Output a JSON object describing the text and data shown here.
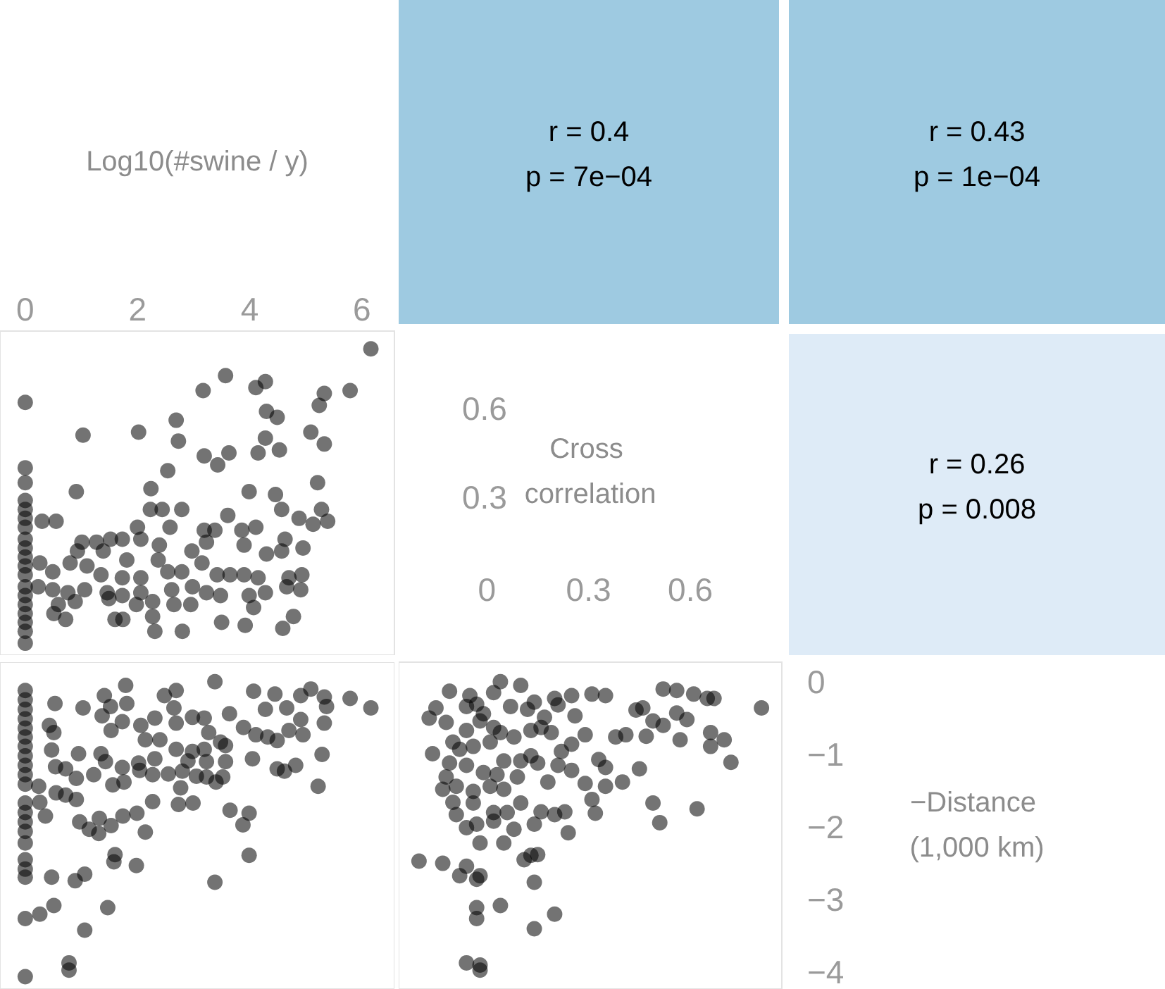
{
  "chart_data": [
    {
      "type": "other",
      "title": "Log10(#swine / y)"
    },
    {
      "type": "other",
      "color": "#9ecae1",
      "annotations": [
        "r = 0.4",
        "p = 7e−04"
      ]
    },
    {
      "type": "other",
      "color": "#9ecae1",
      "annotations": [
        "r = 0.43",
        "p = 1e−04"
      ]
    },
    {
      "type": "scatter",
      "marker": "circle",
      "xlim": [
        -0.45,
        6.58
      ],
      "xticks": [
        0,
        2,
        4,
        6
      ],
      "ylim": [
        -0.23,
        0.86
      ],
      "yticks": [
        0.3,
        0.6
      ],
      "series": [
        {
          "color": "#000000",
          "x": [
            0,
            0,
            0,
            0,
            0,
            0,
            0,
            0,
            0,
            0,
            0,
            0,
            0,
            0,
            0,
            0,
            0,
            0,
            0,
            6.16,
            3.57,
            3.17,
            4.11,
            4.28,
            5.33,
            5.79,
            5.24,
            4.3,
            4.49,
            2.69,
            1.03,
            2.02,
            2.73,
            4.28,
            5.09,
            5.33,
            3.19,
            3.63,
            4.15,
            4.53,
            3.43,
            2.54,
            2.24,
            5.21,
            0.91,
            3.99,
            4.46,
            2.23,
            2.44,
            2.79,
            3.61,
            4.57,
            5.28,
            4.88,
            5.13,
            5.39,
            0.3,
            0.55,
            2.0,
            2.58,
            3.19,
            3.38,
            3.86,
            4.11,
            1.01,
            1.27,
            1.52,
            1.73,
            2.06,
            2.39,
            2.97,
            3.23,
            3.9,
            4.63,
            4.95,
            0.93,
            1.39,
            1.81,
            2.37,
            3.15,
            4.3,
            4.57,
            0.26,
            0.49,
            0.8,
            1.1,
            1.35,
            1.73,
            2.06,
            2.54,
            2.79,
            3.42,
            3.65,
            3.9,
            4.15,
            4.7,
            4.93,
            0.23,
            0.49,
            0.76,
            1.06,
            1.46,
            1.73,
            2.06,
            2.61,
            2.98,
            3.23,
            3.48,
            3.99,
            4.28,
            4.66,
            4.91,
            0.59,
            0.89,
            1.49,
            1.98,
            2.27,
            2.65,
            2.95,
            4.07,
            0.51,
            0.72,
            1.6,
            1.74,
            2.27,
            4.78,
            2.31,
            2.8,
            3.5,
            3.92,
            4.59
          ],
          "values": [
            0.62,
            0.4,
            0.35,
            0.29,
            0.26,
            0.23,
            0.2,
            0.16,
            0.13,
            0.1,
            0.07,
            0.04,
            0.0,
            -0.03,
            -0.06,
            -0.09,
            -0.12,
            -0.15,
            -0.19,
            0.8,
            0.71,
            0.66,
            0.67,
            0.69,
            0.65,
            0.66,
            0.61,
            0.59,
            0.57,
            0.56,
            0.51,
            0.52,
            0.49,
            0.5,
            0.52,
            0.48,
            0.44,
            0.45,
            0.45,
            0.46,
            0.41,
            0.39,
            0.33,
            0.35,
            0.32,
            0.32,
            0.31,
            0.26,
            0.26,
            0.26,
            0.24,
            0.26,
            0.26,
            0.23,
            0.21,
            0.22,
            0.22,
            0.22,
            0.2,
            0.2,
            0.19,
            0.19,
            0.19,
            0.2,
            0.15,
            0.15,
            0.16,
            0.16,
            0.16,
            0.14,
            0.12,
            0.15,
            0.14,
            0.16,
            0.13,
            0.12,
            0.12,
            0.09,
            0.09,
            0.08,
            0.11,
            0.12,
            0.08,
            0.05,
            0.08,
            0.07,
            0.04,
            0.03,
            0.03,
            0.05,
            0.05,
            0.04,
            0.04,
            0.04,
            0.03,
            0.03,
            0.04,
            0.0,
            -0.01,
            -0.02,
            -0.01,
            -0.02,
            -0.03,
            -0.02,
            -0.01,
            0.0,
            -0.02,
            -0.03,
            -0.03,
            -0.02,
            0.0,
            -0.01,
            -0.06,
            -0.05,
            -0.04,
            -0.06,
            -0.05,
            -0.06,
            -0.06,
            -0.07,
            -0.09,
            -0.11,
            -0.11,
            -0.11,
            -0.1,
            -0.1,
            -0.15,
            -0.15,
            -0.12,
            -0.13,
            -0.14
          ]
        }
      ]
    },
    {
      "type": "other",
      "title": "Cross correlation"
    },
    {
      "type": "other",
      "color": "#deebf7",
      "annotations": [
        "r = 0.26",
        "p = 0.008"
      ]
    },
    {
      "type": "scatter",
      "marker": "circle",
      "tick_labels": false,
      "xlim": [
        -0.45,
        6.58
      ],
      "xticks": [
        0,
        2,
        4,
        6
      ],
      "ylim": [
        -4.23,
        0.27
      ],
      "yticks": [
        0,
        -1,
        -2,
        -3,
        -4
      ],
      "series": [
        {
          "color": "#000000",
          "x": [
            0,
            0,
            0,
            0,
            0,
            0,
            0,
            0,
            0,
            0,
            0,
            0,
            0,
            0,
            0,
            0,
            0,
            0,
            0,
            0,
            0,
            0.53,
            1.03,
            1.41,
            1.79,
            1.81,
            1.52,
            1.37,
            2.48,
            2.69,
            3.38,
            4.07,
            4.45,
            4.91,
            5.09,
            5.33,
            5.79,
            6.16,
            4.28,
            4.66,
            5.37,
            5.33,
            4.91,
            2.98,
            3.19,
            3.64,
            2.65,
            2.69,
            2.31,
            2.06,
            1.73,
            1.53,
            0.43,
            0.51,
            3.89,
            4.11,
            4.32,
            4.7,
            4.95,
            4.49,
            2.14,
            2.4,
            3.27,
            3.48,
            3.57,
            2.69,
            2.98,
            3.19,
            0.47,
            0.95,
            1.35,
            2.31,
            2.9,
            3.23,
            3.57,
            4.05,
            5.29,
            1.43,
            0.54,
            0.72,
            2.02,
            1.73,
            4.49,
            4.82,
            4.62,
            0.91,
            1.22,
            1.56,
            1.76,
            2.04,
            2.27,
            2.55,
            2.8,
            3.05,
            3.23,
            3.4,
            3.52,
            2.77,
            5.22,
            0.24,
            0.55,
            0.72,
            0.26,
            0.91,
            2.27,
            2.73,
            2.99,
            3.65,
            3.99,
            3.88,
            0.36,
            0.97,
            1.14,
            1.31,
            1.32,
            1.53,
            1.74,
            1.99,
            2.14,
            3.99,
            1.6,
            1.58,
            1.98,
            0.47,
            0.89,
            1.06,
            3.38,
            0.51,
            0.26,
            1.47,
            1.06,
            0.78,
            0.78
          ],
          "values": [
            -0.12,
            -0.25,
            -0.38,
            -0.51,
            -0.64,
            -0.76,
            -0.89,
            -1.02,
            -1.15,
            -1.28,
            -1.41,
            -1.67,
            -1.8,
            -1.93,
            -2.06,
            -2.22,
            -2.45,
            -2.58,
            -2.69,
            -3.26,
            -4.06,
            -0.3,
            -0.36,
            -0.19,
            -0.05,
            -0.3,
            -0.34,
            -0.47,
            -0.19,
            -0.12,
            0.0,
            -0.13,
            -0.17,
            -0.19,
            -0.1,
            -0.21,
            -0.23,
            -0.36,
            -0.38,
            -0.36,
            -0.34,
            -0.57,
            -0.52,
            -0.49,
            -0.5,
            -0.44,
            -0.36,
            -0.57,
            -0.5,
            -0.6,
            -0.55,
            -0.67,
            -0.6,
            -0.7,
            -0.63,
            -0.73,
            -0.76,
            -0.67,
            -0.73,
            -0.81,
            -0.8,
            -0.8,
            -0.7,
            -0.83,
            -0.88,
            -0.93,
            -0.96,
            -0.93,
            -0.94,
            -0.99,
            -0.99,
            -1.06,
            -1.09,
            -1.1,
            -1.1,
            -1.06,
            -1.0,
            -1.1,
            -1.17,
            -1.2,
            -1.12,
            -1.18,
            -1.2,
            -1.15,
            -1.23,
            -1.33,
            -1.28,
            -1.42,
            -1.38,
            -1.22,
            -1.28,
            -1.27,
            -1.23,
            -1.3,
            -1.31,
            -1.38,
            -1.31,
            -1.46,
            -1.44,
            -1.44,
            -1.53,
            -1.56,
            -1.66,
            -1.62,
            -1.65,
            -1.69,
            -1.67,
            -1.77,
            -1.81,
            -1.97,
            -1.85,
            -1.93,
            -2.03,
            -2.09,
            -1.88,
            -1.98,
            -1.85,
            -1.81,
            -2.07,
            -2.39,
            -2.38,
            -2.48,
            -2.53,
            -2.69,
            -2.74,
            -2.65,
            -2.76,
            -3.08,
            -3.2,
            -3.11,
            -3.42,
            -3.87,
            -3.97
          ]
        }
      ]
    },
    {
      "type": "scatter",
      "marker": "circle",
      "xlim": [
        -0.26,
        0.87
      ],
      "xticks": [
        0,
        0.3,
        0.6
      ],
      "ylim": [
        -4.23,
        0.27
      ],
      "yticks": [
        {
          "value": 0,
          "label": "0"
        },
        {
          "value": -1,
          "label": "−1"
        },
        {
          "value": -2,
          "label": "−2"
        },
        {
          "value": -3,
          "label": "−3"
        },
        {
          "value": -4,
          "label": "−4"
        }
      ],
      "series": [
        {
          "color": "#000000",
          "x": [
            0.81,
            0.52,
            0.56,
            0.61,
            0.65,
            0.67,
            0.31,
            0.35,
            0.44,
            0.46,
            0.49,
            0.52,
            0.56,
            0.59,
            0.66,
            0.7,
            0.66,
            0.57,
            0.72,
            0.47,
            0.41,
            0.38,
            0.45,
            0.33,
            0.35,
            0.35,
            0.4,
            0.29,
            0.31,
            0.32,
            0.23,
            0.24,
            0.49,
            0.51,
            0.62,
            0.2,
            0.16,
            0.14,
            0.13,
            0.15,
            0.14,
            0.14,
            0.2,
            0.04,
            -0.03,
            -0.03,
            -0.2,
            -0.13,
            -0.06,
            -0.02,
            -0.03,
            -0.08,
            -0.06,
            -0.02,
            -0.02,
            -0.11,
            -0.05,
            0.04,
            0.02,
            0.1,
            0.14,
            0.2,
            0.25,
            -0.15,
            -0.17,
            -0.12,
            -0.06,
            -0.03,
            -0.01,
            0.07,
            0.12,
            0.17,
            0.21,
            0.26,
            0.29,
            -0.02,
            0.02,
            0.04,
            -0.06,
            -0.1,
            -0.08,
            -0.04,
            0.01,
            0.08,
            0.13,
            0.16,
            0.19,
            0.25,
            0.22,
            -0.16,
            -0.11,
            -0.12,
            -0.13,
            -0.09,
            -0.06,
            -0.01,
            0.03,
            0.05,
            0.1,
            0.13,
            0.15,
            0.18,
            0.21,
            0.25,
            0.09,
            0.01,
            0.05,
            -0.04,
            -0.1,
            -0.04,
            0.02,
            0.06,
            0.1,
            -0.09,
            -0.06,
            -0.03,
            0.02,
            0.08,
            -0.02,
            0.05,
            0.11
          ],
          "values": [
            -0.36,
            -0.1,
            -0.12,
            -0.17,
            -0.23,
            -0.23,
            -0.17,
            -0.19,
            -0.39,
            -0.36,
            -0.54,
            -0.6,
            -0.43,
            -0.52,
            -0.7,
            -0.8,
            -0.89,
            -0.8,
            -1.11,
            -0.75,
            -0.73,
            -0.76,
            -1.2,
            -1.07,
            -1.18,
            -1.44,
            -1.38,
            -1.4,
            -1.62,
            -1.81,
            -1.79,
            -2.08,
            -1.67,
            -1.94,
            -1.75,
            -1.83,
            -1.79,
            -1.96,
            -2.39,
            -2.38,
            -2.76,
            -3.4,
            -3.2,
            -3.08,
            -3.11,
            -3.26,
            -2.47,
            -2.5,
            -2.54,
            -2.67,
            -2.72,
            -2.67,
            -3.87,
            -3.97,
            -3.9,
            -0.13,
            -0.19,
            0.0,
            -0.15,
            -0.05,
            -0.28,
            -0.23,
            -0.19,
            -0.36,
            -0.5,
            -0.56,
            -0.34,
            -0.31,
            -0.44,
            -0.34,
            -0.38,
            -0.49,
            -0.32,
            -0.47,
            -0.73,
            -0.54,
            -0.63,
            -0.7,
            -0.67,
            -0.83,
            -0.93,
            -0.89,
            -0.83,
            -0.76,
            -0.67,
            -0.63,
            -0.7,
            -0.86,
            -0.96,
            -0.99,
            -1.12,
            -1.31,
            -1.48,
            -1.44,
            -1.15,
            -1.25,
            -1.28,
            -1.09,
            -1.09,
            -1.02,
            -1.12,
            -1.38,
            -1.15,
            -1.22,
            -1.31,
            -1.44,
            -1.48,
            -1.51,
            -1.66,
            -1.67,
            -1.8,
            -1.8,
            -1.67,
            -1.83,
            -2.01,
            -1.96,
            -1.92,
            -2.03,
            -2.22,
            -2.22,
            -2.45
          ]
        }
      ]
    },
    {
      "type": "other",
      "title": "−Distance (1,000 km)"
    }
  ]
}
